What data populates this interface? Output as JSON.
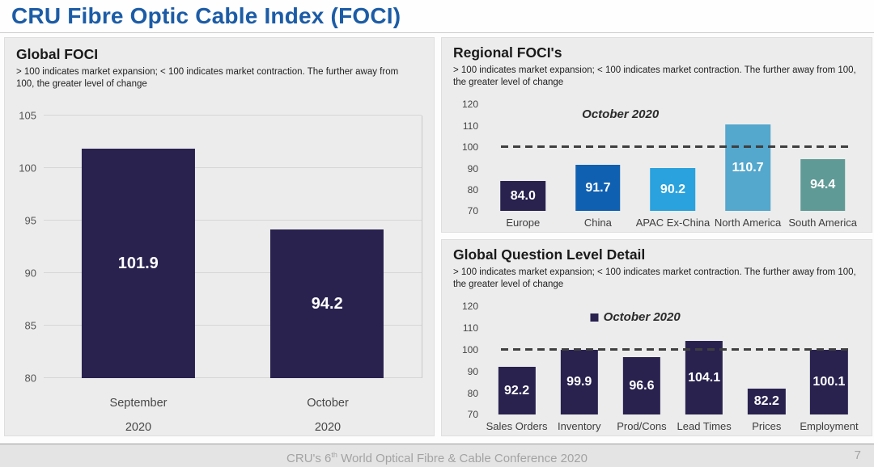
{
  "page_title": "CRU Fibre Optic Cable Index (FOCI)",
  "footer": {
    "text_prefix": "CRU's 6",
    "text_sup": "th",
    "text_suffix": " World Optical Fibre & Cable Conference 2020",
    "page_number": "7"
  },
  "colors": {
    "title_blue": "#1c5ca6",
    "navy_bar": "#29224f",
    "china_blue": "#1060b2",
    "apac_blue": "#29a2dd",
    "north_america_blue": "#54a7cd",
    "south_america_teal": "#5f9a96",
    "panel_bg": "#ececec",
    "grid_line": "#d6d6d6",
    "ref_line": "#3f3f3f"
  },
  "chart_data": [
    {
      "type": "bar",
      "title": "Global FOCI",
      "note": "> 100 indicates market expansion; < 100 indicates market contraction. The further away from 100, the greater level of change",
      "categories": [
        "September 2020",
        "October 2020"
      ],
      "values": [
        101.9,
        94.2
      ],
      "labels": [
        "101.9",
        "94.2"
      ],
      "bar_colors": [
        "#29224f",
        "#29224f"
      ],
      "ylim": [
        80,
        105
      ],
      "ytick_step": 5,
      "grid": true,
      "ref_line": null,
      "annotation": null,
      "legend": null,
      "xlabel_two_line": true
    },
    {
      "type": "bar",
      "title": "Regional FOCI's",
      "note": "> 100 indicates market expansion; < 100 indicates market contraction. The further away from 100, the greater level of change",
      "categories": [
        "Europe",
        "China",
        "APAC Ex-China",
        "North America",
        "South America"
      ],
      "values": [
        84.0,
        91.7,
        90.2,
        110.7,
        94.4
      ],
      "labels": [
        "84.0",
        "91.7",
        "90.2",
        "110.7",
        "94.4"
      ],
      "bar_colors": [
        "#29224f",
        "#1060b2",
        "#29a2dd",
        "#54a7cd",
        "#5f9a96"
      ],
      "ylim": [
        70,
        120
      ],
      "ytick_step": 10,
      "grid": false,
      "ref_line": 100,
      "annotation": "October 2020",
      "legend": null,
      "xlabel_two_line": false
    },
    {
      "type": "bar",
      "title": "Global Question Level Detail",
      "note": "> 100 indicates market expansion; < 100 indicates market contraction. The further away from 100, the greater level of change",
      "categories": [
        "Sales Orders",
        "Inventory",
        "Prod/Cons",
        "Lead Times",
        "Prices",
        "Employment"
      ],
      "values": [
        92.2,
        99.9,
        96.6,
        104.1,
        82.2,
        100.1
      ],
      "labels": [
        "92.2",
        "99.9",
        "96.6",
        "104.1",
        "82.2",
        "100.1"
      ],
      "bar_colors": [
        "#29224f",
        "#29224f",
        "#29224f",
        "#29224f",
        "#29224f",
        "#29224f"
      ],
      "ylim": [
        70,
        120
      ],
      "ytick_step": 10,
      "grid": false,
      "ref_line": 100,
      "annotation": null,
      "legend": "October 2020",
      "xlabel_two_line": false
    }
  ]
}
